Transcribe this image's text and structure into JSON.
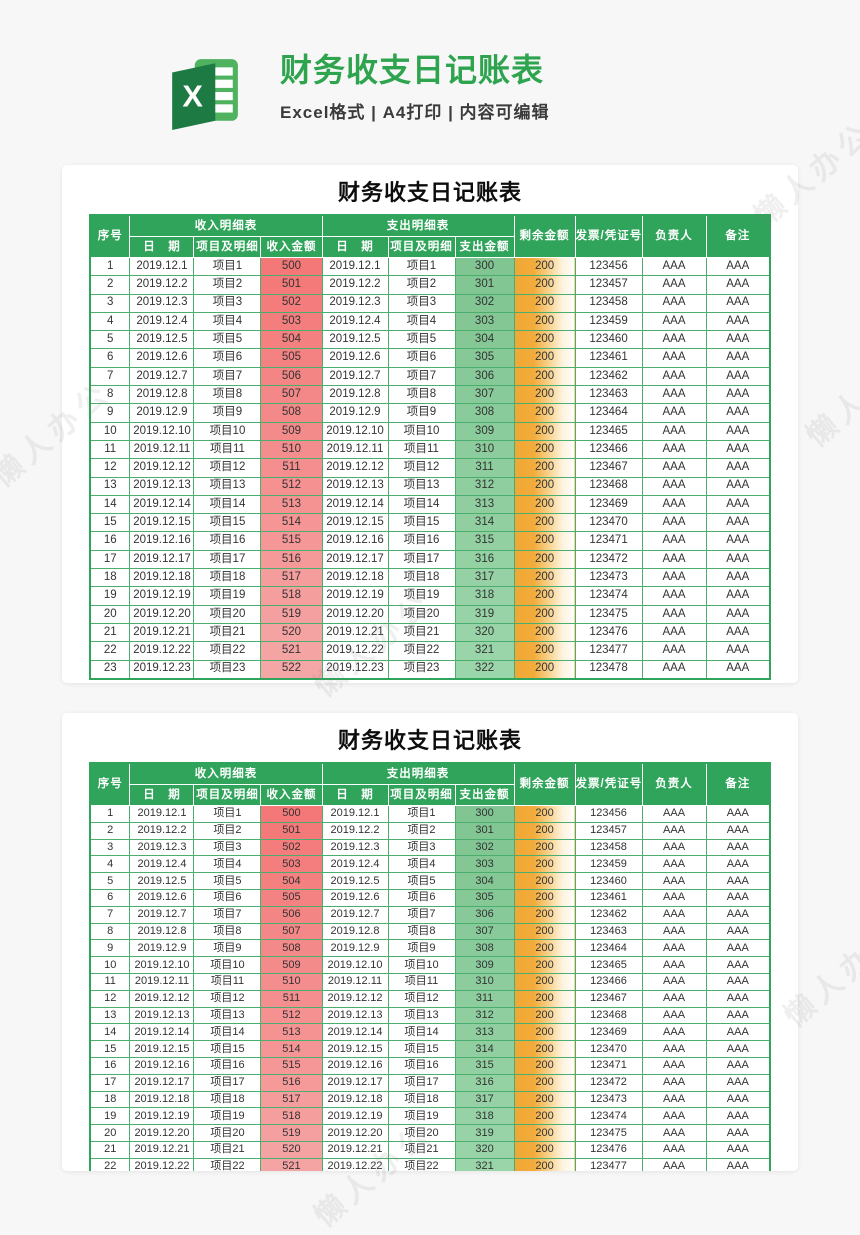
{
  "header": {
    "title": "财务收支日记账表",
    "subtitle": "Excel格式  |  A4打印  |  内容可编辑",
    "icon_letter": "X"
  },
  "table": {
    "title": "财务收支日记账表",
    "columns": {
      "index": "序号",
      "income_group": "收入明细表",
      "expense_group": "支出明细表",
      "date": "日　期",
      "item": "项目及明细",
      "income_amount": "收入金额",
      "expense_amount": "支出金额",
      "remaining": "剩余金额",
      "invoice": "发票/凭证号",
      "owner": "负责人",
      "note": "备注"
    },
    "rows": [
      {
        "i": "1",
        "date": "2019.12.1",
        "item": "项目1",
        "income": "500",
        "expense": "300",
        "remaining": "200",
        "invoice": "123456",
        "owner": "AAA",
        "note": "AAA"
      },
      {
        "i": "2",
        "date": "2019.12.2",
        "item": "项目2",
        "income": "501",
        "expense": "301",
        "remaining": "200",
        "invoice": "123457",
        "owner": "AAA",
        "note": "AAA"
      },
      {
        "i": "3",
        "date": "2019.12.3",
        "item": "项目3",
        "income": "502",
        "expense": "302",
        "remaining": "200",
        "invoice": "123458",
        "owner": "AAA",
        "note": "AAA"
      },
      {
        "i": "4",
        "date": "2019.12.4",
        "item": "项目4",
        "income": "503",
        "expense": "303",
        "remaining": "200",
        "invoice": "123459",
        "owner": "AAA",
        "note": "AAA"
      },
      {
        "i": "5",
        "date": "2019.12.5",
        "item": "项目5",
        "income": "504",
        "expense": "304",
        "remaining": "200",
        "invoice": "123460",
        "owner": "AAA",
        "note": "AAA"
      },
      {
        "i": "6",
        "date": "2019.12.6",
        "item": "项目6",
        "income": "505",
        "expense": "305",
        "remaining": "200",
        "invoice": "123461",
        "owner": "AAA",
        "note": "AAA"
      },
      {
        "i": "7",
        "date": "2019.12.7",
        "item": "项目7",
        "income": "506",
        "expense": "306",
        "remaining": "200",
        "invoice": "123462",
        "owner": "AAA",
        "note": "AAA"
      },
      {
        "i": "8",
        "date": "2019.12.8",
        "item": "项目8",
        "income": "507",
        "expense": "307",
        "remaining": "200",
        "invoice": "123463",
        "owner": "AAA",
        "note": "AAA"
      },
      {
        "i": "9",
        "date": "2019.12.9",
        "item": "项目9",
        "income": "508",
        "expense": "308",
        "remaining": "200",
        "invoice": "123464",
        "owner": "AAA",
        "note": "AAA"
      },
      {
        "i": "10",
        "date": "2019.12.10",
        "item": "项目10",
        "income": "509",
        "expense": "309",
        "remaining": "200",
        "invoice": "123465",
        "owner": "AAA",
        "note": "AAA"
      },
      {
        "i": "11",
        "date": "2019.12.11",
        "item": "项目11",
        "income": "510",
        "expense": "310",
        "remaining": "200",
        "invoice": "123466",
        "owner": "AAA",
        "note": "AAA"
      },
      {
        "i": "12",
        "date": "2019.12.12",
        "item": "项目12",
        "income": "511",
        "expense": "311",
        "remaining": "200",
        "invoice": "123467",
        "owner": "AAA",
        "note": "AAA"
      },
      {
        "i": "13",
        "date": "2019.12.13",
        "item": "项目13",
        "income": "512",
        "expense": "312",
        "remaining": "200",
        "invoice": "123468",
        "owner": "AAA",
        "note": "AAA"
      },
      {
        "i": "14",
        "date": "2019.12.14",
        "item": "项目14",
        "income": "513",
        "expense": "313",
        "remaining": "200",
        "invoice": "123469",
        "owner": "AAA",
        "note": "AAA"
      },
      {
        "i": "15",
        "date": "2019.12.15",
        "item": "项目15",
        "income": "514",
        "expense": "314",
        "remaining": "200",
        "invoice": "123470",
        "owner": "AAA",
        "note": "AAA"
      },
      {
        "i": "16",
        "date": "2019.12.16",
        "item": "项目16",
        "income": "515",
        "expense": "315",
        "remaining": "200",
        "invoice": "123471",
        "owner": "AAA",
        "note": "AAA"
      },
      {
        "i": "17",
        "date": "2019.12.17",
        "item": "项目17",
        "income": "516",
        "expense": "316",
        "remaining": "200",
        "invoice": "123472",
        "owner": "AAA",
        "note": "AAA"
      },
      {
        "i": "18",
        "date": "2019.12.18",
        "item": "项目18",
        "income": "517",
        "expense": "317",
        "remaining": "200",
        "invoice": "123473",
        "owner": "AAA",
        "note": "AAA"
      },
      {
        "i": "19",
        "date": "2019.12.19",
        "item": "项目19",
        "income": "518",
        "expense": "318",
        "remaining": "200",
        "invoice": "123474",
        "owner": "AAA",
        "note": "AAA"
      },
      {
        "i": "20",
        "date": "2019.12.20",
        "item": "项目20",
        "income": "519",
        "expense": "319",
        "remaining": "200",
        "invoice": "123475",
        "owner": "AAA",
        "note": "AAA"
      },
      {
        "i": "21",
        "date": "2019.12.21",
        "item": "项目21",
        "income": "520",
        "expense": "320",
        "remaining": "200",
        "invoice": "123476",
        "owner": "AAA",
        "note": "AAA"
      },
      {
        "i": "22",
        "date": "2019.12.22",
        "item": "项目22",
        "income": "521",
        "expense": "321",
        "remaining": "200",
        "invoice": "123477",
        "owner": "AAA",
        "note": "AAA"
      },
      {
        "i": "23",
        "date": "2019.12.23",
        "item": "项目23",
        "income": "522",
        "expense": "322",
        "remaining": "200",
        "invoice": "123478",
        "owner": "AAA",
        "note": "AAA"
      }
    ]
  },
  "tables_visible_rows": [
    23,
    22
  ],
  "watermark_text": "懒人办公",
  "colors": {
    "header_green": "#2fa45a",
    "border_green": "#4aae6e",
    "income_start": "#f47878",
    "income_end": "#f5a6a6",
    "expense_start": "#80c592",
    "expense_end": "#9bd5aa",
    "bar_orange": "#f0a735",
    "title_green": "#2ea44f"
  }
}
